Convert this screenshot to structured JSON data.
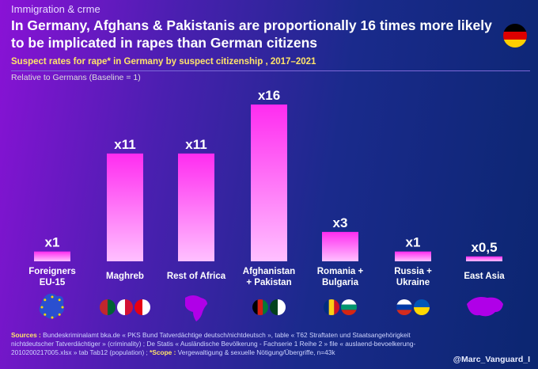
{
  "header": {
    "kicker": "Immigration & crme",
    "title": "In Germany, Afghans & Pakistanis are proportionally 16 times more likely to be implicated in rapes than German citizens",
    "flag_icon": "germany-flag-icon"
  },
  "chart_data": {
    "type": "bar",
    "title": "Suspect rates for rape* in Germany by suspect citizenship , 2017–2021",
    "subtitle": "Relative to Germans (Baseline = 1)",
    "categories": [
      "Foreigners EU-15",
      "Maghreb",
      "Rest of Africa",
      "Afghanistan + Pakistan",
      "Romania + Bulgaria",
      "Russia + Ukraine",
      "East Asia"
    ],
    "values": [
      1,
      11,
      11,
      16,
      3,
      1,
      0.5
    ],
    "data_labels": [
      "x1",
      "x11",
      "x11",
      "x16",
      "x3",
      "x1",
      "x0,5"
    ],
    "category_icons": [
      "eu-map-icon",
      "morocco-algeria-tunisia-flags-icon",
      "africa-map-icon",
      "afghanistan-pakistan-flags-icon",
      "romania-bulgaria-flags-icon",
      "russia-ukraine-flags-icon",
      "east-asia-map-icon"
    ],
    "ylim": [
      0,
      16
    ],
    "grid": false,
    "colors": {
      "bar_top": "#ff2cf0",
      "bar_bottom": "#ffc0ff",
      "label": "#ffffff"
    }
  },
  "footer": {
    "sources_label": "Sources :",
    "sources_text": " Bundeskriminalamt bka.de « PKS Bund Tatverdächtige deutsch/nichtdeutsch », table « T62 Straftaten und Staatsangehörigkeit nichtdeutscher Tatverdächtiger » (criminality) ; De Statis « Ausländische Bevölkerung - Fachserie 1 Reihe 2 » file « auslaend-bevoelkerung-2010200217005.xlsx » tab Tab12 (population) ; ",
    "scope_label": "*Scope :",
    "scope_text": " Vergewaltigung & sexuelle Nötigung/Übergriffe, n=43k",
    "handle": "@Marc_Vanguard_I"
  }
}
